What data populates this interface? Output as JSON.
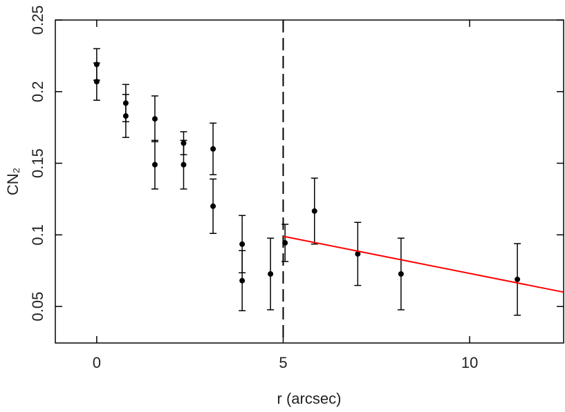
{
  "chart_data": {
    "type": "scatter",
    "xlabel": "r (arcsec)",
    "ylabel": "CN₂",
    "xlim": [
      -1.11,
      12.52
    ],
    "ylim": [
      0.0245,
      0.25
    ],
    "xticks": [
      0,
      5,
      10
    ],
    "yticks": [
      0.05,
      0.1,
      0.15,
      0.2,
      0.25
    ],
    "vline": 5,
    "series": [
      {
        "color": "#000000",
        "x": [
          0,
          0,
          0.78,
          0.78,
          1.56,
          1.56,
          2.33,
          2.33,
          3.12,
          3.12,
          3.9,
          3.9,
          4.66,
          5.05,
          5.84,
          7.0,
          8.16,
          11.28
        ],
        "values": [
          0.219,
          0.207,
          0.192,
          0.183,
          0.181,
          0.149,
          0.164,
          0.149,
          0.16,
          0.12,
          0.0935,
          0.068,
          0.0727,
          0.0944,
          0.1166,
          0.0867,
          0.0727,
          0.0689
        ],
        "errors": [
          0.011,
          0.013,
          0.013,
          0.015,
          0.016,
          0.017,
          0.008,
          0.017,
          0.018,
          0.019,
          0.02,
          0.021,
          0.025,
          0.013,
          0.023,
          0.022,
          0.025,
          0.025
        ]
      }
    ],
    "fit": {
      "color": "#ff0000",
      "x": [
        5,
        12.52
      ],
      "values": [
        0.099,
        0.06
      ]
    }
  }
}
